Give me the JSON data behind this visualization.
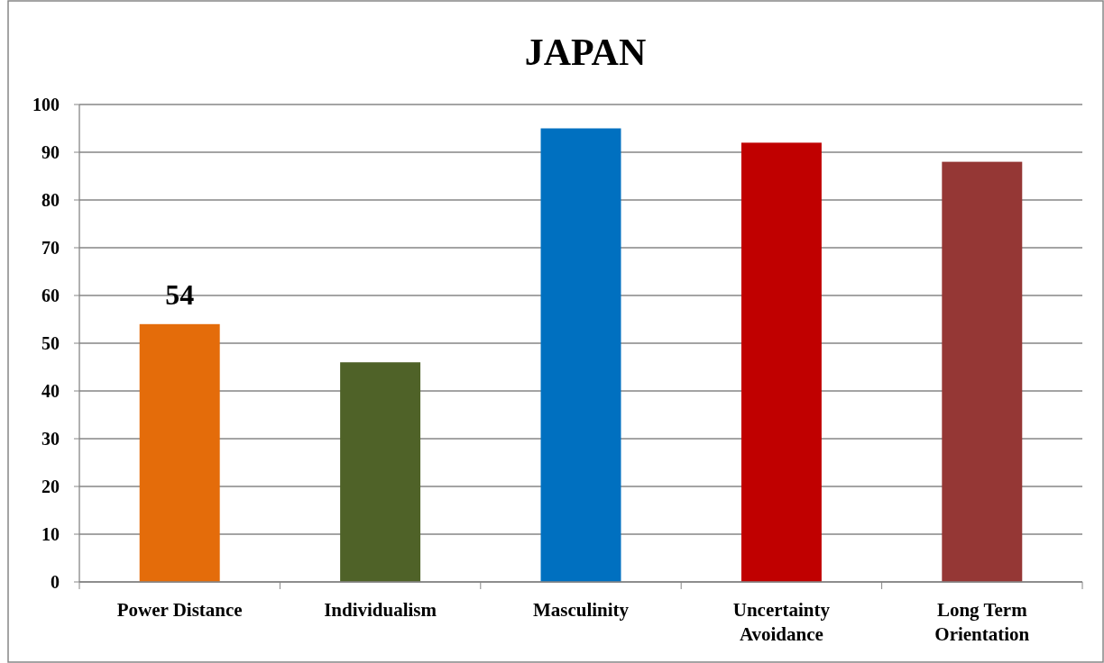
{
  "chart_data": {
    "type": "bar",
    "title": "JAPAN",
    "categories": [
      "Power Distance",
      "Individualism",
      "Masculinity",
      "Uncertainty Avoidance",
      "Long Term Orientation"
    ],
    "values": [
      54,
      46,
      95,
      92,
      88
    ],
    "colors": [
      "#e46c0a",
      "#4f6228",
      "#0070c0",
      "#c00000",
      "#953735"
    ],
    "value_labels": [
      "54",
      null,
      null,
      null,
      null
    ],
    "ylim": [
      0,
      100
    ],
    "yticks": [
      0,
      10,
      20,
      30,
      40,
      50,
      60,
      70,
      80,
      90,
      100
    ],
    "grid": "y"
  }
}
